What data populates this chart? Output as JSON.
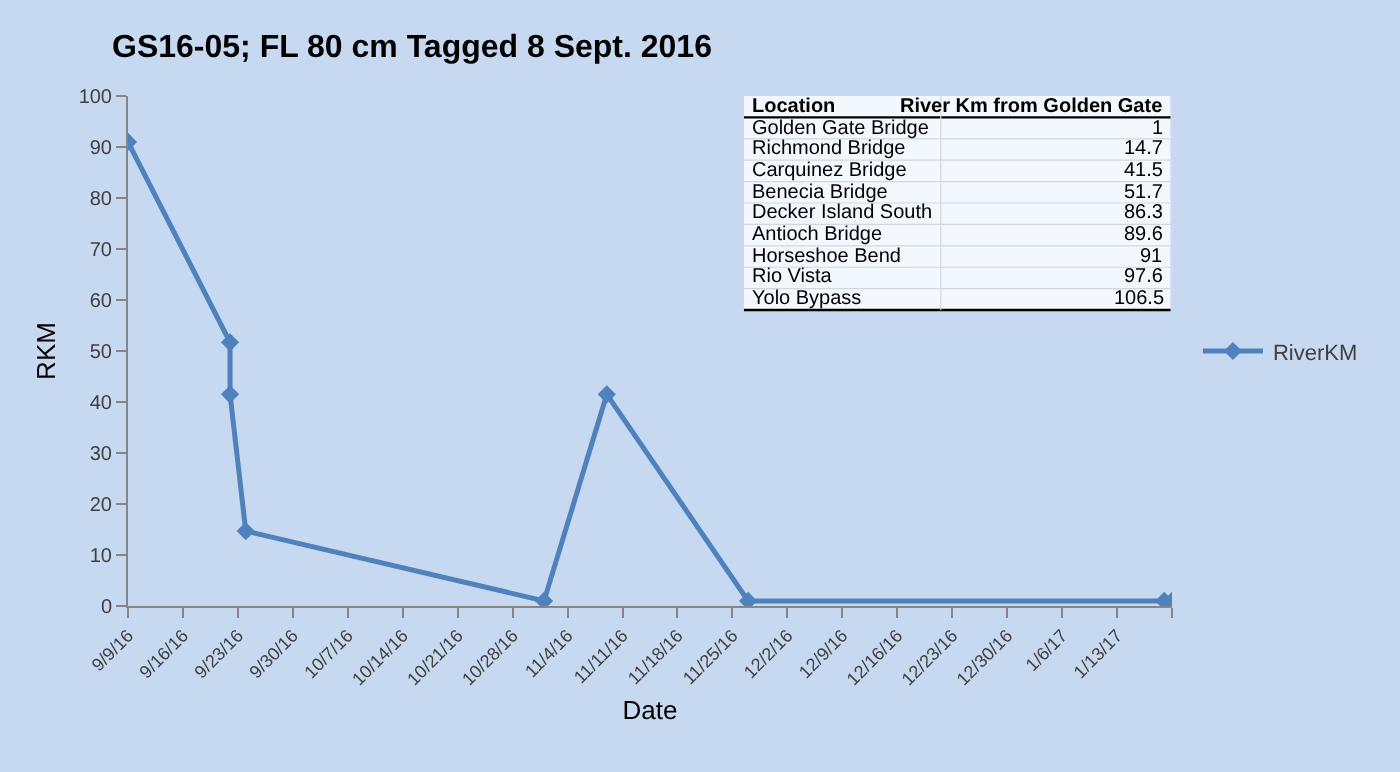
{
  "chart_data": {
    "type": "line",
    "title": "GS16-05; FL 80 cm Tagged 8 Sept. 2016",
    "xlabel": "Date",
    "ylabel": "RKM",
    "x": [
      "2016-09-09",
      "2016-09-22",
      "2016-09-22",
      "2016-09-24",
      "2016-11-01",
      "2016-11-09",
      "2016-11-27",
      "2017-01-19",
      "2017-01-20"
    ],
    "series": [
      {
        "name": "RiverKM",
        "color": "#4f81bd",
        "values": [
          91,
          51.7,
          41.5,
          14.7,
          1,
          41.5,
          1,
          1,
          1
        ]
      }
    ],
    "xlim": [
      "2016-09-09",
      "2017-01-20"
    ],
    "xticks": [
      {
        "value": "2016-09-09",
        "label": "9/9/16"
      },
      {
        "value": "2016-09-16",
        "label": "9/16/16"
      },
      {
        "value": "2016-09-23",
        "label": "9/23/16"
      },
      {
        "value": "2016-09-30",
        "label": "9/30/16"
      },
      {
        "value": "2016-10-07",
        "label": "10/7/16"
      },
      {
        "value": "2016-10-14",
        "label": "10/14/16"
      },
      {
        "value": "2016-10-21",
        "label": "10/21/16"
      },
      {
        "value": "2016-10-28",
        "label": "10/28/16"
      },
      {
        "value": "2016-11-04",
        "label": "11/4/16"
      },
      {
        "value": "2016-11-11",
        "label": "11/11/16"
      },
      {
        "value": "2016-11-18",
        "label": "11/18/16"
      },
      {
        "value": "2016-11-25",
        "label": "11/25/16"
      },
      {
        "value": "2016-12-02",
        "label": "12/2/16"
      },
      {
        "value": "2016-12-09",
        "label": "12/9/16"
      },
      {
        "value": "2016-12-16",
        "label": "12/16/16"
      },
      {
        "value": "2016-12-23",
        "label": "12/23/16"
      },
      {
        "value": "2016-12-30",
        "label": "12/30/16"
      },
      {
        "value": "2017-01-06",
        "label": "1/6/17"
      },
      {
        "value": "2017-01-13",
        "label": "1/13/17"
      },
      {
        "value": "2017-01-20",
        "label": null
      }
    ],
    "ylim": [
      0,
      100
    ],
    "yticks": [
      0,
      10,
      20,
      30,
      40,
      50,
      60,
      70,
      80,
      90,
      100
    ],
    "grid": false,
    "legend": "right",
    "marker": "diamond",
    "line_style": "solid",
    "annotations": [
      "Location",
      "River Km from Golden Gate",
      "Golden Gate Bridge",
      "1",
      "Richmond Bridge",
      "14.7",
      "Carquinez Bridge",
      "41.5",
      "Benecia Bridge",
      "51.7",
      "Decker Island South",
      "86.3",
      "Antioch Bridge",
      "89.6",
      "Horseshoe Bend",
      "91",
      "Rio Vista",
      "97.6",
      "Yolo Bypass",
      "106.5"
    ]
  }
}
